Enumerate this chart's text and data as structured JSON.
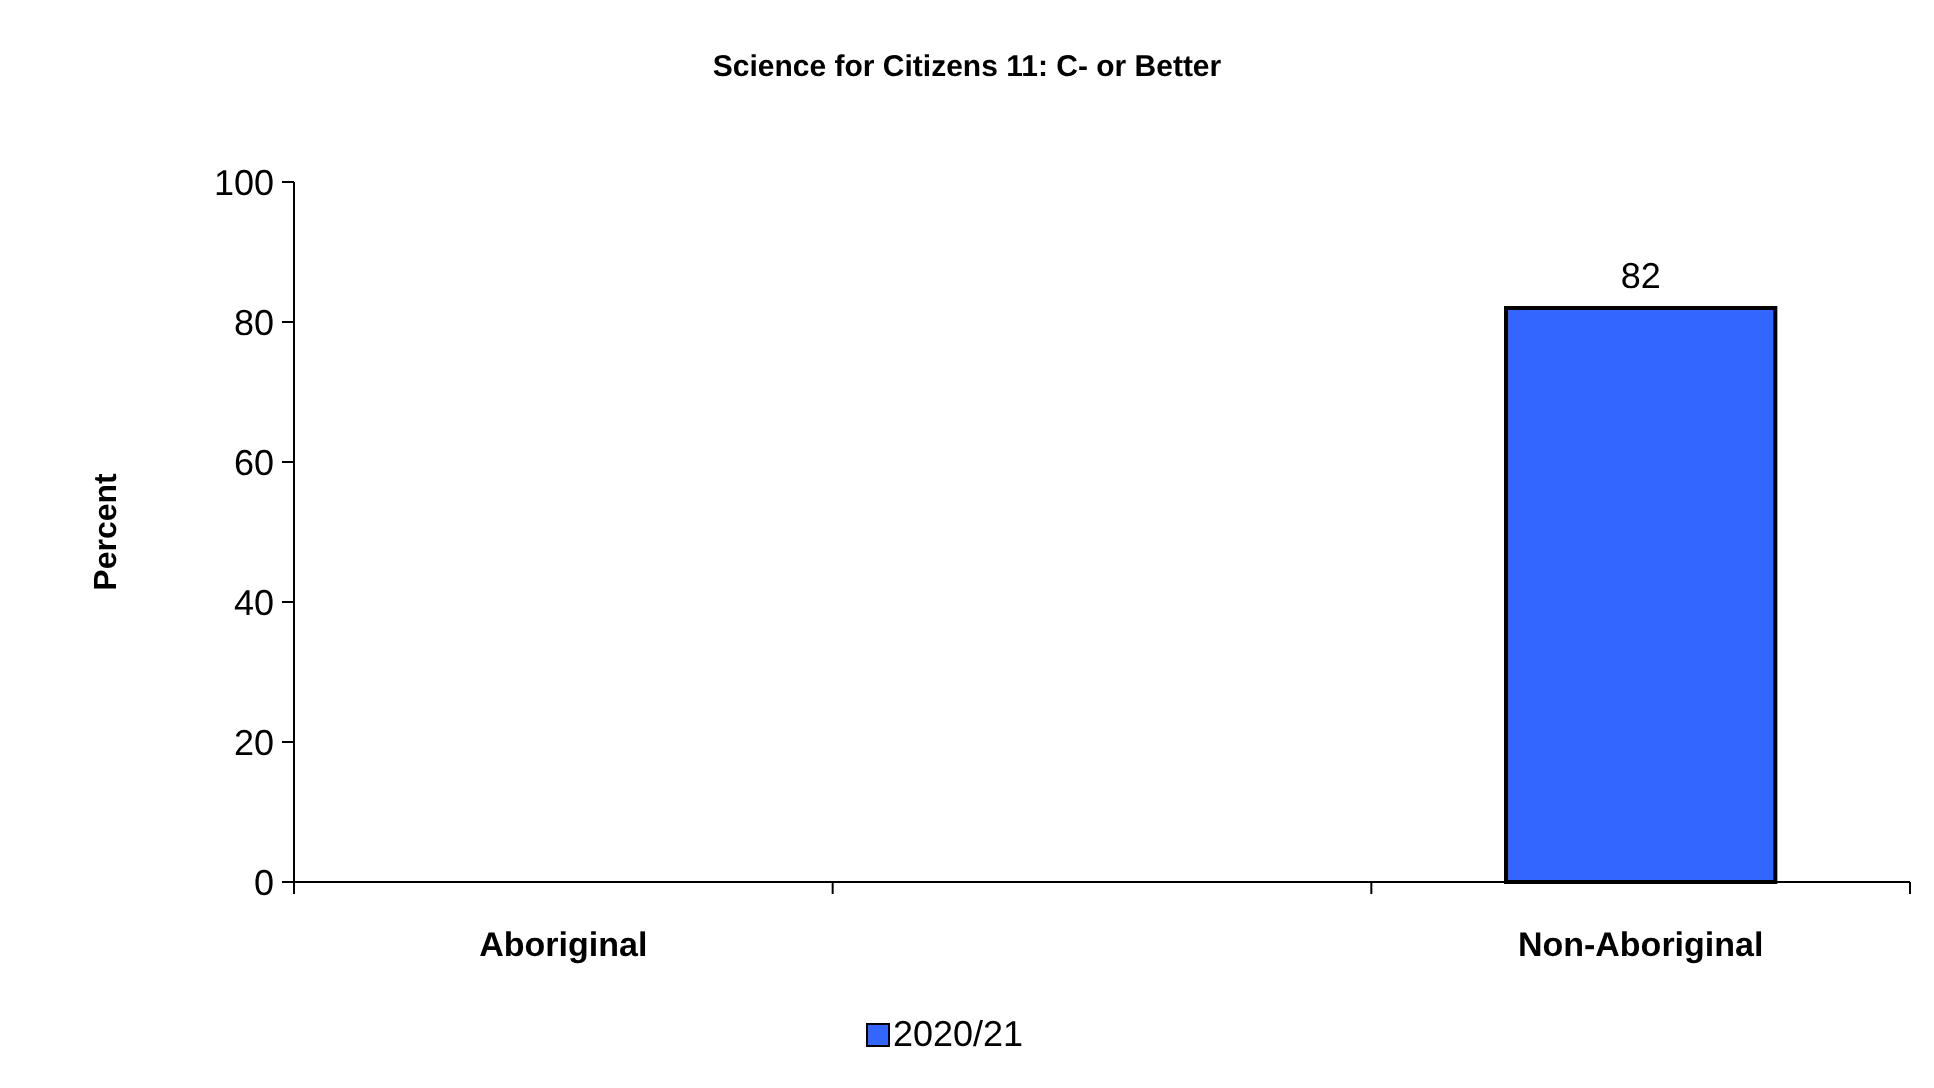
{
  "chart_data": {
    "type": "bar",
    "title": "Science for Citizens 11: C- or Better",
    "ylabel": "Percent",
    "categories": [
      "Aboriginal",
      null,
      "Non-Aboriginal"
    ],
    "series": [
      {
        "name": "2020/21",
        "color": "#3366ff",
        "values": [
          null,
          null,
          82
        ]
      }
    ],
    "ylim": [
      0,
      100
    ],
    "yticks": [
      0,
      20,
      40,
      60,
      80,
      100
    ],
    "data_labels": true,
    "legend": "bottom",
    "grid": false
  }
}
